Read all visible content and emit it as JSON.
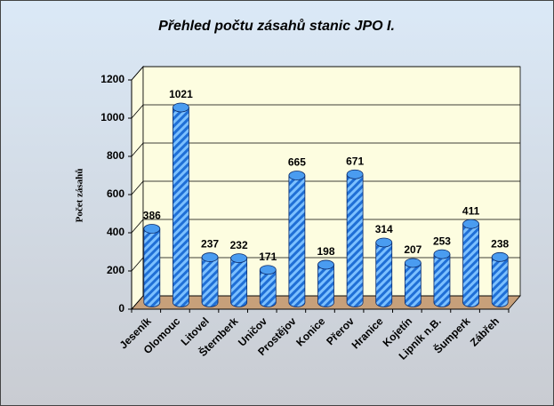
{
  "chart_data": {
    "type": "bar",
    "title": "Přehled počtu zásahů  stanic JPO I.",
    "y_label": "Počet zásahů",
    "categories": [
      "Jeseník",
      "Olomouc",
      "Litovel",
      "Šternberk",
      "Uničov",
      "Prostějov",
      "Konice",
      "Přerov",
      "Hranice",
      "Kojetín",
      "Lipník n.B.",
      "Šumperk",
      "Zábřeh"
    ],
    "values": [
      386,
      1021,
      237,
      232,
      171,
      665,
      198,
      671,
      314,
      207,
      253,
      411,
      238
    ],
    "color": "#1f6fd6",
    "ylim": [
      0,
      1200
    ],
    "yticks": [
      0,
      200,
      400,
      600,
      800,
      1000,
      1200
    ],
    "grid": true
  }
}
